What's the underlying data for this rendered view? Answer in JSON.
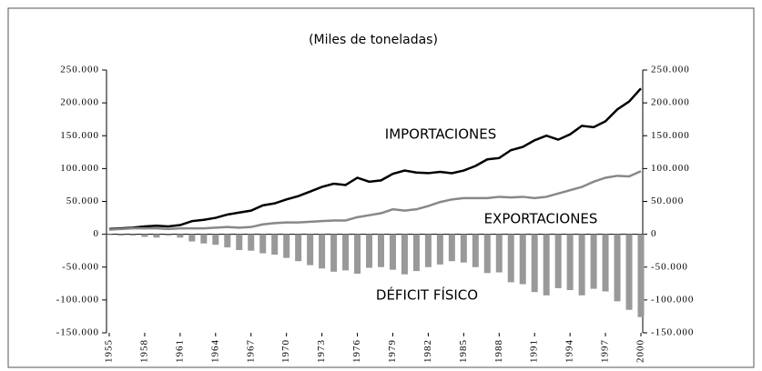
{
  "chart_data": {
    "type": "line",
    "title": "(Miles de toneladas)",
    "x": [
      1955,
      1956,
      1957,
      1958,
      1959,
      1960,
      1961,
      1962,
      1963,
      1964,
      1965,
      1966,
      1967,
      1968,
      1969,
      1970,
      1971,
      1972,
      1973,
      1974,
      1975,
      1976,
      1977,
      1978,
      1979,
      1980,
      1981,
      1982,
      1983,
      1984,
      1985,
      1986,
      1987,
      1988,
      1989,
      1990,
      1991,
      1992,
      1993,
      1994,
      1995,
      1996,
      1997,
      1998,
      1999,
      2000
    ],
    "series": [
      {
        "name": "IMPORTACIONES",
        "color": "#000000",
        "kind": "line",
        "values": [
          8000,
          9000,
          10000,
          12000,
          13000,
          12000,
          14000,
          20000,
          22000,
          25000,
          30000,
          33000,
          36000,
          44000,
          47000,
          53000,
          58000,
          65000,
          72000,
          77000,
          75000,
          86000,
          80000,
          82000,
          92000,
          97000,
          94000,
          93000,
          95000,
          93000,
          97000,
          104000,
          114000,
          116000,
          128000,
          133000,
          143000,
          150000,
          144000,
          152000,
          165000,
          163000,
          172000,
          190000,
          202000,
          222000
        ]
      },
      {
        "name": "EXPORTACIONES",
        "color": "#888888",
        "kind": "line",
        "values": [
          7000,
          8000,
          9000,
          9000,
          9000,
          8000,
          9000,
          9000,
          9000,
          10000,
          11000,
          10000,
          11000,
          15000,
          17000,
          18000,
          18000,
          19000,
          20000,
          21000,
          21000,
          26000,
          29000,
          32000,
          38000,
          36000,
          38000,
          43000,
          49000,
          53000,
          55000,
          55000,
          55000,
          57000,
          56000,
          57000,
          55000,
          57000,
          62000,
          67000,
          72000,
          80000,
          86000,
          89000,
          88000,
          96000
        ]
      },
      {
        "name": "DÉFICIT FÍSICO",
        "color": "#999999",
        "kind": "bar",
        "values": [
          -1000,
          -2000,
          -2000,
          -4000,
          -5000,
          -2000,
          -5000,
          -11000,
          -14000,
          -16000,
          -20000,
          -24000,
          -25000,
          -29000,
          -31000,
          -36000,
          -41000,
          -47000,
          -52000,
          -57000,
          -55000,
          -60000,
          -51000,
          -50000,
          -54000,
          -61000,
          -56000,
          -50000,
          -46000,
          -41000,
          -43000,
          -50000,
          -59000,
          -58000,
          -73000,
          -76000,
          -88000,
          -93000,
          -82000,
          -85000,
          -93000,
          -83000,
          -87000,
          -102000,
          -115000,
          -126000
        ]
      }
    ],
    "xlim": [
      1955,
      2000
    ],
    "xticks": [
      1955,
      1958,
      1961,
      1964,
      1967,
      1970,
      1973,
      1976,
      1979,
      1982,
      1985,
      1988,
      1991,
      1994,
      1997,
      2000
    ],
    "ylim": [
      -150000,
      250000
    ],
    "yticks": [
      {
        "value": -150000,
        "label": "-150.000"
      },
      {
        "value": -100000,
        "label": "-100.000"
      },
      {
        "value": -50000,
        "label": "-50.000"
      },
      {
        "value": 0,
        "label": "0"
      },
      {
        "value": 50000,
        "label": "50.000"
      },
      {
        "value": 100000,
        "label": "100.000"
      },
      {
        "value": 150000,
        "label": "150.000"
      },
      {
        "value": 200000,
        "label": "200.000"
      },
      {
        "value": 250000,
        "label": "250.000"
      }
    ]
  }
}
